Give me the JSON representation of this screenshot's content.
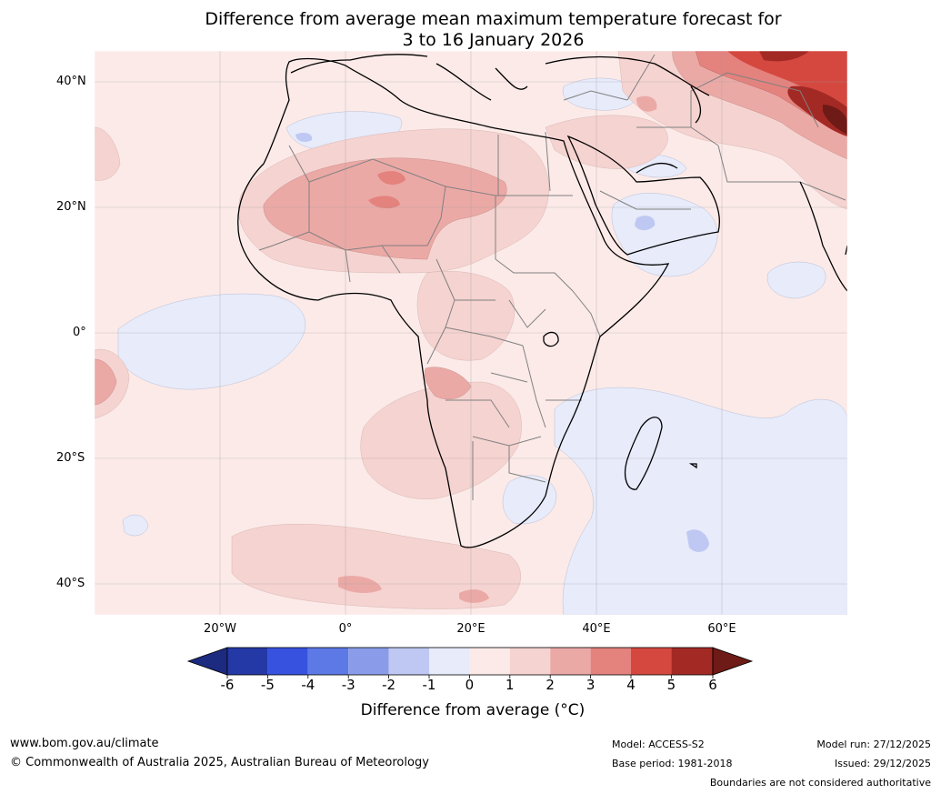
{
  "title": {
    "line1": "Difference from average mean maximum temperature forecast for",
    "line2": "3 to 16 January 2026"
  },
  "map": {
    "lat_labels": [
      "40°N",
      "20°N",
      "0°",
      "20°S",
      "40°S"
    ],
    "lon_labels": [
      "20°W",
      "0°",
      "20°E",
      "40°E",
      "60°E"
    ]
  },
  "colorbar": {
    "ticks": [
      "-6",
      "-5",
      "-4",
      "-3",
      "-2",
      "-1",
      "0",
      "1",
      "2",
      "3",
      "4",
      "5",
      "6"
    ],
    "colors": [
      "#2539a6",
      "#3652df",
      "#5c79e6",
      "#8a9ce9",
      "#bfc8f2",
      "#e7ebfa",
      "#fbeae8",
      "#f5d3d0",
      "#eba9a6",
      "#e4827e",
      "#d44840",
      "#a32924"
    ],
    "underflow_color": "#1c2a80",
    "overflow_color": "#6e1a16",
    "label": "Difference from average (°C)"
  },
  "footer": {
    "website": "www.bom.gov.au/climate",
    "copyright": "© Commonwealth of Australia 2025, Australian Bureau of Meteorology",
    "model": "Model: ACCESS-S2",
    "base_period": "Base period: 1981-2018",
    "model_run": "Model run: 27/12/2025",
    "issued": "Issued: 29/12/2025",
    "disclaimer": "Boundaries are not considered authoritative"
  }
}
